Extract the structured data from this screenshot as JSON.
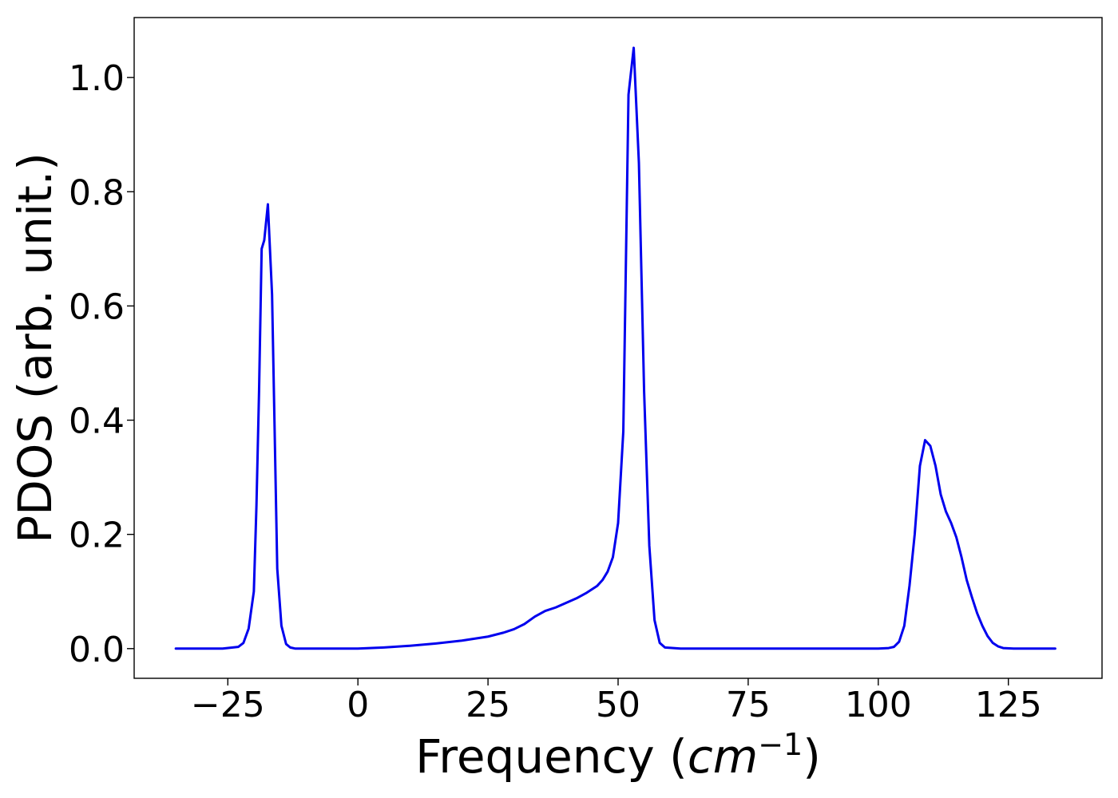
{
  "chart_data": {
    "type": "line",
    "xlabel": {
      "prefix": "Frequency (",
      "var": "cm",
      "sup": "−1",
      "suffix": ")"
    },
    "ylabel": "PDOS (arb. unit.)",
    "xlim": [
      -43,
      143
    ],
    "ylim": [
      -0.052,
      1.105
    ],
    "xticks": [
      -25,
      0,
      25,
      50,
      75,
      100,
      125
    ],
    "xtick_labels": [
      "−25",
      "0",
      "25",
      "50",
      "75",
      "100",
      "125"
    ],
    "yticks": [
      0.0,
      0.2,
      0.4,
      0.6,
      0.8,
      1.0
    ],
    "ytick_labels": [
      "0.0",
      "0.2",
      "0.4",
      "0.6",
      "0.8",
      "1.0"
    ],
    "grid": false,
    "series": [
      {
        "color": "#0000ee",
        "x": [
          -35,
          -26,
          -23,
          -22,
          -21,
          -20,
          -19.5,
          -19,
          -18.5,
          -18,
          -17.3,
          -16.5,
          -16,
          -15.5,
          -14.7,
          -13.8,
          -13,
          -12,
          -10,
          0,
          5,
          10,
          15,
          20,
          25,
          28,
          30,
          32,
          34,
          36,
          38,
          40,
          42,
          44,
          46,
          47,
          48,
          49,
          50,
          51,
          52,
          53,
          54,
          55,
          56,
          57,
          58,
          59,
          62,
          80,
          100,
          102,
          103,
          104,
          105,
          106,
          107,
          108,
          109,
          110,
          111,
          112,
          113,
          114,
          115,
          116,
          117,
          118,
          119,
          120,
          121,
          122,
          123,
          124,
          126,
          134
        ],
        "y": [
          0.0,
          0.0,
          0.003,
          0.01,
          0.035,
          0.1,
          0.25,
          0.45,
          0.7,
          0.715,
          0.778,
          0.62,
          0.38,
          0.14,
          0.04,
          0.008,
          0.002,
          0.0,
          0.0,
          0.0,
          0.002,
          0.005,
          0.009,
          0.014,
          0.021,
          0.028,
          0.034,
          0.043,
          0.056,
          0.066,
          0.072,
          0.08,
          0.088,
          0.098,
          0.11,
          0.12,
          0.135,
          0.16,
          0.22,
          0.38,
          0.97,
          1.052,
          0.85,
          0.45,
          0.18,
          0.05,
          0.01,
          0.002,
          0.0,
          0.0,
          0.0,
          0.001,
          0.003,
          0.012,
          0.04,
          0.11,
          0.2,
          0.32,
          0.365,
          0.355,
          0.32,
          0.27,
          0.24,
          0.22,
          0.195,
          0.16,
          0.12,
          0.09,
          0.062,
          0.04,
          0.022,
          0.01,
          0.004,
          0.001,
          0.0,
          0.0
        ]
      }
    ]
  }
}
